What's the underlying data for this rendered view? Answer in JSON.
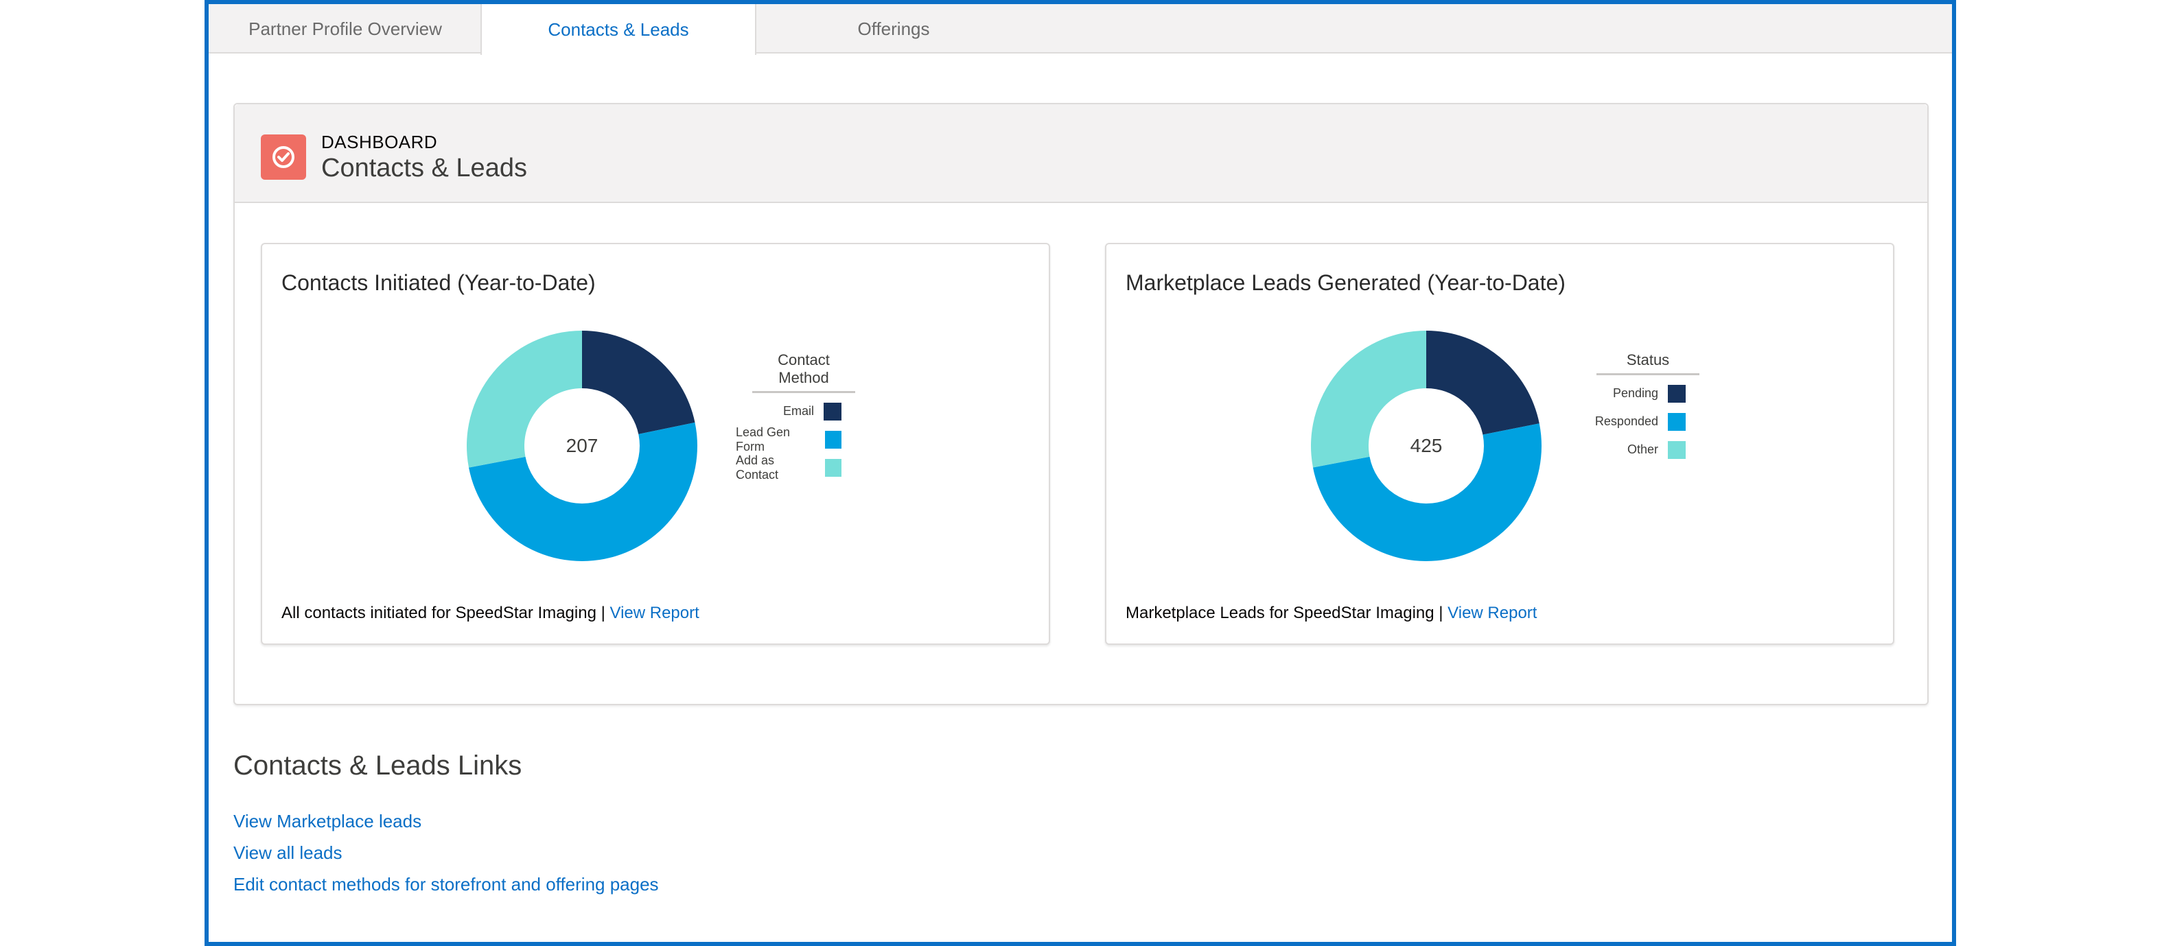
{
  "tabs": [
    {
      "label": "Partner Profile Overview",
      "active": false
    },
    {
      "label": "Contacts & Leads",
      "active": true
    },
    {
      "label": "Offerings",
      "active": false
    }
  ],
  "header": {
    "eyebrow": "DASHBOARD",
    "title": "Contacts & Leads",
    "icon": "dashboard-gauge-icon",
    "icon_color": "#ef6e64"
  },
  "colors": {
    "accent": "#0b6fc6",
    "series1": "#16325c",
    "series2": "#00a1e0",
    "series3": "#76ded9"
  },
  "panels": [
    {
      "title": "Contacts Initiated (Year-to-Date)",
      "center_value": "207",
      "legend_title": "Contact Method",
      "footer_text": "All contacts initiated for SpeedStar Imaging | ",
      "footer_link": "View Report"
    },
    {
      "title": "Marketplace Leads Generated (Year-to-Date)",
      "center_value": "425",
      "legend_title": "Status",
      "footer_text": "Marketplace Leads for SpeedStar Imaging | ",
      "footer_link": "View Report"
    }
  ],
  "chart_data": [
    {
      "type": "pie",
      "title": "Contacts Initiated (Year-to-Date)",
      "legend_title": "Contact Method",
      "legend_position": "right",
      "total": 207,
      "slices": [
        {
          "label": "Email",
          "value": 45,
          "color": "#16325c"
        },
        {
          "label": "Lead Gen Form",
          "value": 104,
          "color": "#00a1e0"
        },
        {
          "label": "Add as Contact",
          "value": 58,
          "color": "#76ded9"
        }
      ]
    },
    {
      "type": "pie",
      "title": "Marketplace Leads Generated (Year-to-Date)",
      "legend_title": "Status",
      "legend_position": "right",
      "total": 425,
      "slices": [
        {
          "label": "Pending",
          "value": 93,
          "color": "#16325c"
        },
        {
          "label": "Responded",
          "value": 213,
          "color": "#00a1e0"
        },
        {
          "label": "Other",
          "value": 119,
          "color": "#76ded9"
        }
      ]
    }
  ],
  "links_section": {
    "title": "Contacts & Leads Links",
    "links": [
      "View Marketplace leads",
      "View all leads",
      "Edit contact methods for storefront and offering pages"
    ]
  }
}
